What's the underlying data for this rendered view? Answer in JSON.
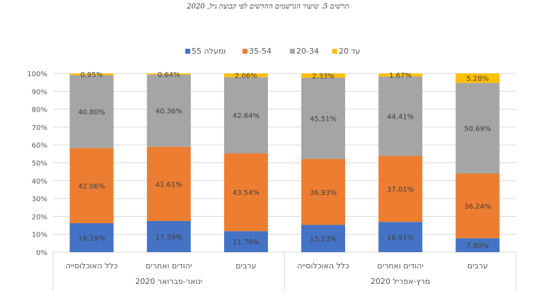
{
  "chart_data": {
    "type": "bar",
    "stacked": true,
    "title": "תרשים 5. שיעור הנרשמים החדשים לפי קבוצת גיל, 2020",
    "categories": [
      "כלל האוכלוסייה",
      "יהודים ואחרים",
      "ערבים",
      "כלל האוכלוסייה",
      "יהודים ואחרים",
      "ערבים"
    ],
    "groups": [
      {
        "label": "ינואר-פברואר 2020",
        "count": 3
      },
      {
        "label": "מרץ-אפריל 2020",
        "count": 3
      }
    ],
    "series": [
      {
        "name": "55 ומעלה",
        "color": "#4472C4",
        "values": [
          16.19,
          17.39,
          11.76,
          15.23,
          16.91,
          7.8
        ]
      },
      {
        "name": "35-54",
        "color": "#ED7D31",
        "values": [
          42.06,
          41.61,
          43.54,
          36.93,
          37.01,
          36.24
        ]
      },
      {
        "name": "20-34",
        "color": "#A5A5A5",
        "values": [
          40.8,
          40.36,
          42.64,
          45.51,
          44.41,
          50.69
        ]
      },
      {
        "name": "עד 20",
        "color": "#FFC000",
        "values": [
          0.95,
          0.64,
          2.06,
          2.33,
          1.67,
          5.28
        ]
      }
    ],
    "yticks": [
      "0%",
      "10%",
      "20%",
      "30%",
      "40%",
      "50%",
      "60%",
      "70%",
      "80%",
      "90%",
      "100%"
    ],
    "ylim": [
      0,
      100
    ],
    "grid": true,
    "legend": "top"
  }
}
